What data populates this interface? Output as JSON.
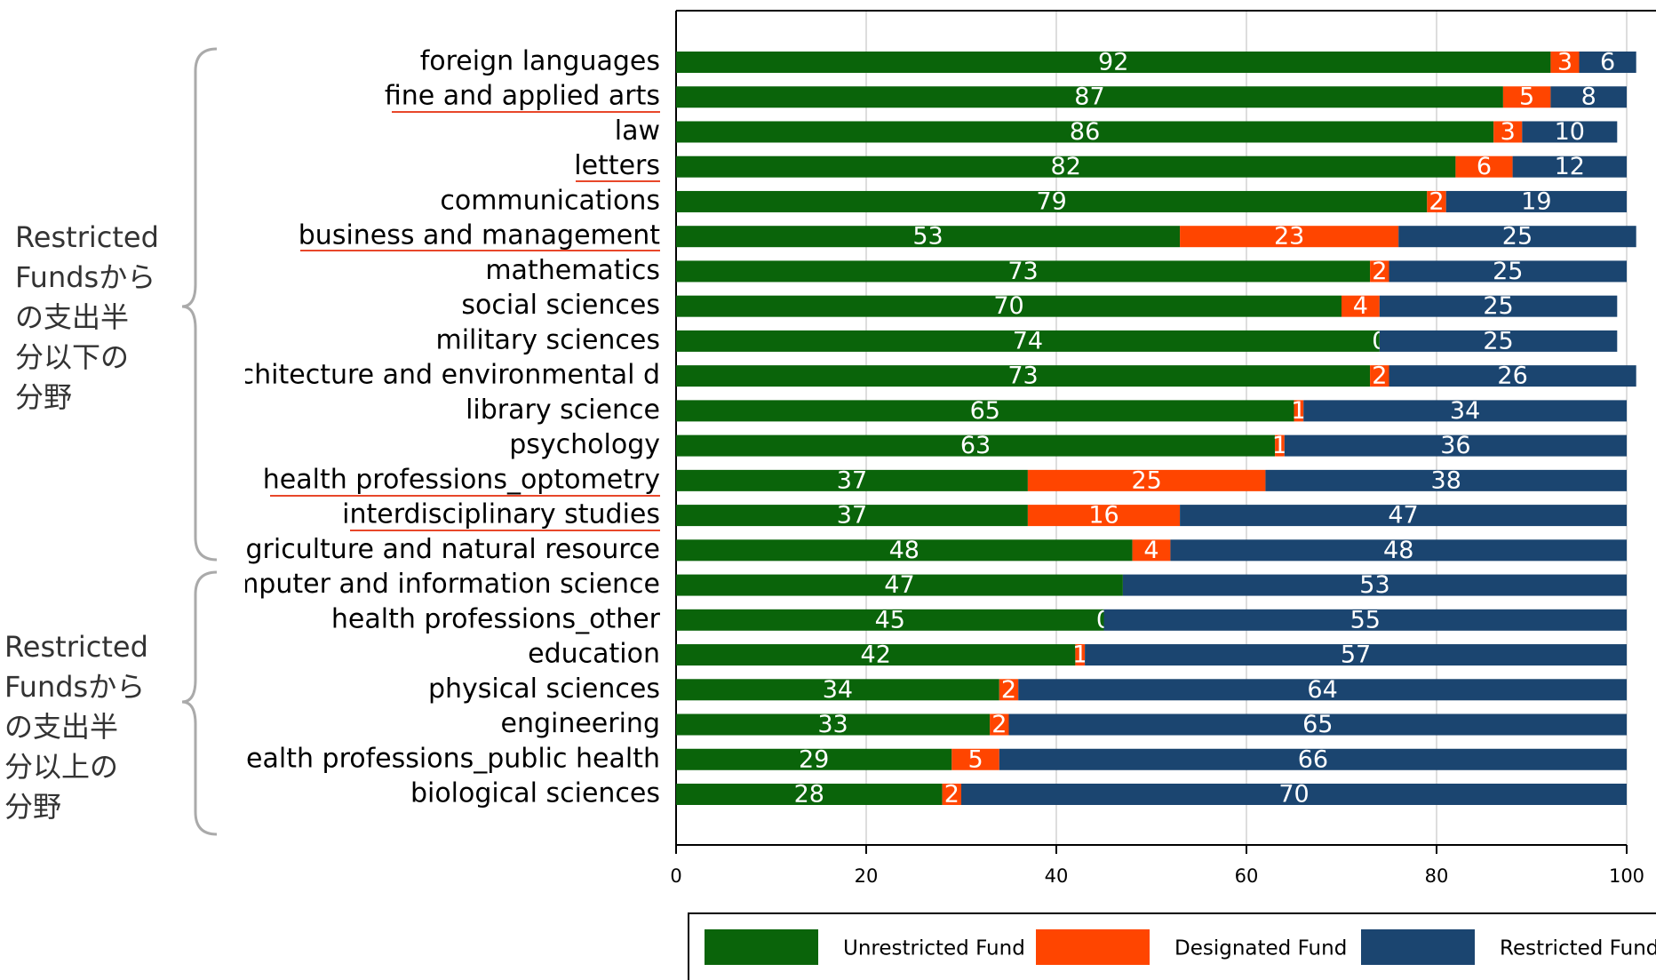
{
  "chart_data": {
    "type": "stacked_barh",
    "categories": [
      "foreign languages",
      "fine and applied arts",
      "law",
      "letters",
      "communications",
      "business and management",
      "mathematics",
      "social sciences",
      "military sciences",
      "architecture and environmental d",
      "library science",
      "psychology",
      "health professions_optometry",
      "interdisciplinary studies",
      "agriculture and natural resource",
      "computer and information science",
      "health professions_other",
      "education",
      "physical sciences",
      "engineering",
      "health professions_public health",
      "biological sciences"
    ],
    "series": [
      {
        "name": "Unrestricted Fund",
        "color": "#0a640a",
        "values": [
          92,
          87,
          86,
          82,
          79,
          53,
          73,
          70,
          74,
          73,
          65,
          63,
          37,
          37,
          48,
          47,
          45,
          42,
          34,
          33,
          29,
          28
        ]
      },
      {
        "name": "Designated Fund",
        "color": "#ff4500",
        "values": [
          3,
          5,
          3,
          6,
          2,
          23,
          2,
          4,
          0,
          2,
          1,
          1,
          25,
          16,
          4,
          null,
          0,
          1,
          2,
          2,
          5,
          2
        ]
      },
      {
        "name": "Restricted Fund",
        "color": "#1b4570",
        "values": [
          6,
          8,
          10,
          12,
          19,
          25,
          25,
          25,
          25,
          26,
          34,
          36,
          38,
          47,
          48,
          53,
          55,
          57,
          64,
          65,
          66,
          70
        ]
      }
    ],
    "xlim": [
      0,
      100
    ],
    "xticks": [
      0,
      20,
      40,
      60,
      80,
      100
    ],
    "grid": true,
    "annotations": [
      [
        "Restricted",
        "Fundsから",
        "の支出半",
        "分以下の",
        "分野"
      ],
      [
        "Restricted",
        "Fundsから",
        "の支出半",
        "分以上の",
        "分野"
      ]
    ]
  }
}
